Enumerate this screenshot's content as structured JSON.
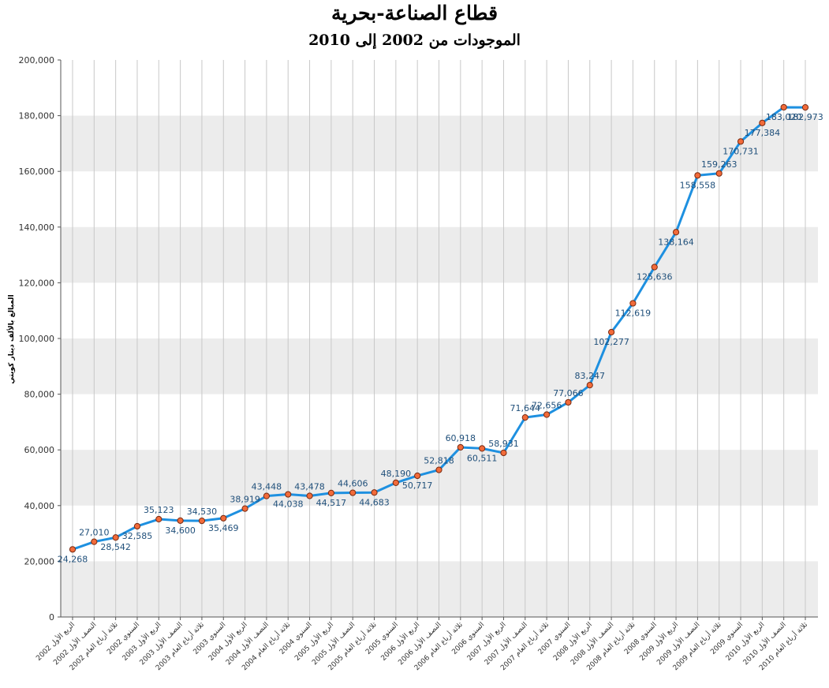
{
  "colors": {
    "line": "#1e90e0",
    "marker_fill": "#f26b3a",
    "marker_stroke": "#7a2a10",
    "band": "#ececec",
    "grid": "#c8c8c8",
    "label": "#1f4f7a"
  },
  "chart_data": {
    "type": "line",
    "title": "قطاع الصناعة-بحرية",
    "subtitle": "الموجودات من 2002 إلى 2010",
    "ylabel": "المبالغ بالألف دينار كويتي",
    "xlabel": "",
    "ylim": [
      0,
      200000
    ],
    "yticks": [
      "0",
      "20,000",
      "40,000",
      "60,000",
      "80,000",
      "100,000",
      "120,000",
      "140,000",
      "160,000",
      "180,000",
      "200,000"
    ],
    "grid": "on",
    "legend": "none",
    "categories": [
      "الربع الأول 2002",
      "النصف الأول 2002",
      "ثلاثة أرباع العام 2002",
      "السنوي 2002",
      "الربع الأول 2003",
      "النصف الأول 2003",
      "ثلاثة أرباع العام 2003",
      "السنوي 2003",
      "الربع الأول 2004",
      "النصف الأول 2004",
      "ثلاثة أرباع العام 2004",
      "السنوي 2004",
      "الربع الأول 2005",
      "النصف الأول 2005",
      "ثلاثة أرباع العام 2005",
      "السنوي 2005",
      "الربع الأول 2006",
      "النصف الأول 2006",
      "ثلاثة أرباع العام 2006",
      "السنوي 2006",
      "الربع الأول 2007",
      "النصف الأول 2007",
      "ثلاثة أرباع العام 2007",
      "السنوي 2007",
      "الربع الأول 2008",
      "النصف الأول 2008",
      "ثلاثة أرباع العام 2008",
      "السنوي 2008",
      "الربع الأول 2009",
      "النصف الأول 2009",
      "ثلاثة أرباع العام 2009",
      "السنوي 2009",
      "الربع الأول 2010",
      "النصف الأول 2010",
      "ثلاثة أرباع العام 2010"
    ],
    "values": [
      24268,
      27010,
      28542,
      32585,
      35123,
      34600,
      34530,
      35469,
      38919,
      43448,
      44038,
      43478,
      44517,
      44606,
      44683,
      48190,
      50717,
      52818,
      60918,
      60511,
      58931,
      71644,
      72656,
      77066,
      83247,
      102277,
      112619,
      125636,
      138164,
      158558,
      159263,
      170731,
      177384,
      183020,
      182973
    ],
    "value_labels": [
      "24,268",
      "27,010",
      "28,542",
      "32,585",
      "35,123",
      "34,600",
      "34,530",
      "35,469",
      "38,919",
      "43,448",
      "44,038",
      "43,478",
      "44,517",
      "44,606",
      "44,683",
      "48,190",
      "50,717",
      "52,818",
      "60,918",
      "60,511",
      "58,931",
      "71,644",
      "72,656",
      "77,066",
      "83,247",
      "102,277",
      "112,619",
      "125,636",
      "138,164",
      "158,558",
      "159,263",
      "170,731",
      "177,384",
      "183,020",
      "182,973"
    ],
    "label_positions": [
      "below",
      "above",
      "below",
      "below",
      "above",
      "below",
      "above",
      "below",
      "above",
      "above",
      "below",
      "above",
      "below",
      "above",
      "below",
      "above",
      "below",
      "above",
      "above",
      "below",
      "above",
      "above",
      "above",
      "above",
      "above",
      "below",
      "below",
      "below",
      "below",
      "below",
      "above",
      "below",
      "below",
      "below",
      "below"
    ]
  }
}
